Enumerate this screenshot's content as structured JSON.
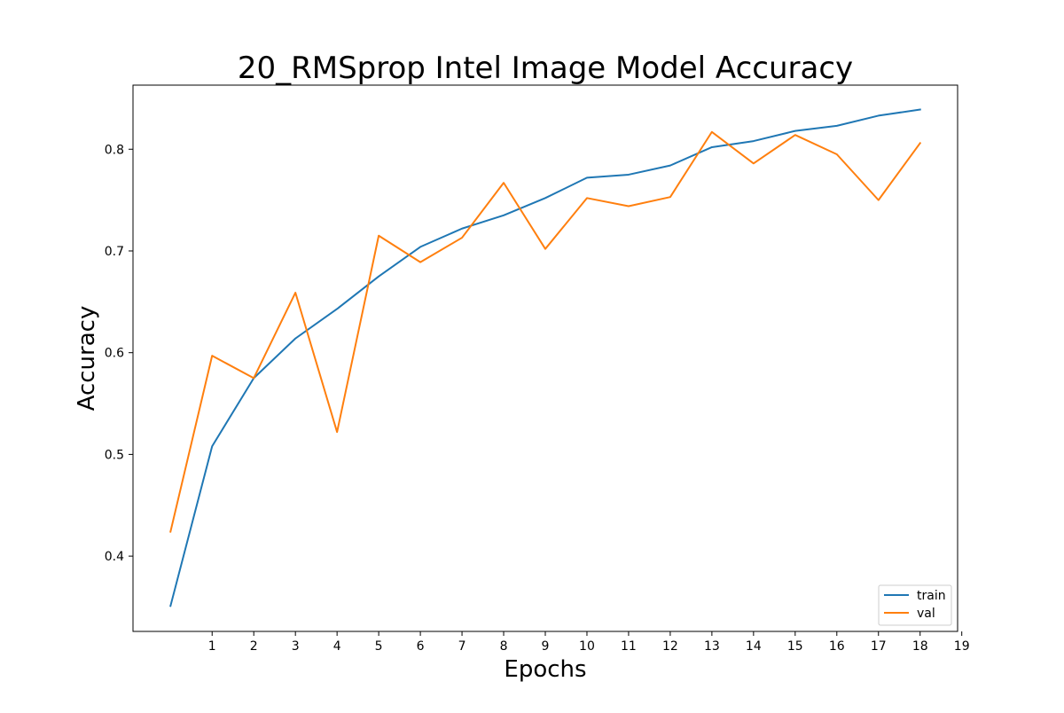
{
  "chart_data": {
    "type": "line",
    "title": "20_RMSprop Intel Image Model Accuracy",
    "xlabel": "Epochs",
    "ylabel": "Accuracy",
    "x": [
      0,
      1,
      2,
      3,
      4,
      5,
      6,
      7,
      8,
      9,
      10,
      11,
      12,
      13,
      14,
      15,
      16,
      17,
      18
    ],
    "x_ticks": [
      "1",
      "2",
      "3",
      "4",
      "5",
      "6",
      "7",
      "8",
      "9",
      "10",
      "11",
      "12",
      "13",
      "14",
      "15",
      "16",
      "17",
      "18",
      "19"
    ],
    "y_ticks": [
      "0.4",
      "0.5",
      "0.6",
      "0.7",
      "0.8"
    ],
    "xlim": [
      -0.9,
      18.9
    ],
    "ylim": [
      0.326,
      0.863
    ],
    "grid": false,
    "legend_position": "lower right",
    "series": [
      {
        "name": "train",
        "color": "#1f77b4",
        "values": [
          0.351,
          0.508,
          0.575,
          0.614,
          0.643,
          0.675,
          0.704,
          0.722,
          0.735,
          0.752,
          0.772,
          0.775,
          0.784,
          0.802,
          0.808,
          0.818,
          0.823,
          0.833,
          0.839
        ]
      },
      {
        "name": "val",
        "color": "#ff7f0e",
        "values": [
          0.424,
          0.597,
          0.575,
          0.659,
          0.522,
          0.715,
          0.689,
          0.713,
          0.767,
          0.702,
          0.752,
          0.744,
          0.753,
          0.817,
          0.786,
          0.814,
          0.795,
          0.75,
          0.806
        ]
      }
    ]
  }
}
